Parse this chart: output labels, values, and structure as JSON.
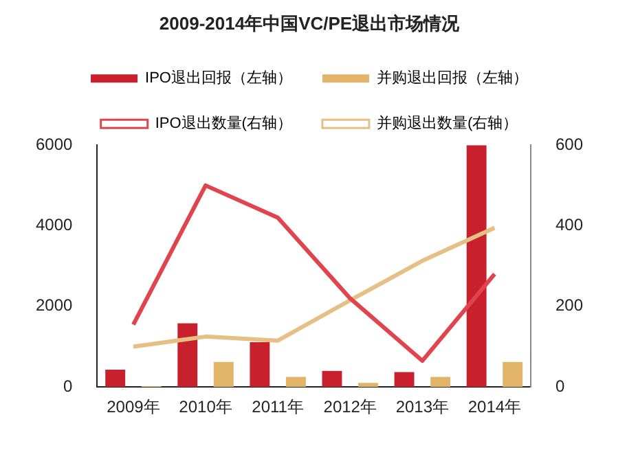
{
  "chart_data": {
    "type": "bar",
    "title": "2009-2014年中国VC/PE退出市场情况",
    "categories": [
      "2009年",
      "2010年",
      "2011年",
      "2012年",
      "2013年",
      "2014年"
    ],
    "series": [
      {
        "name": "IPO退出回报（左轴）",
        "color": "#c8202c",
        "values": [
          430,
          1580,
          1110,
          400,
          370,
          6000
        ]
      },
      {
        "name": "并购退出回报（左轴）",
        "color": "#e2b46a",
        "values": [
          20,
          620,
          250,
          100,
          250,
          620
        ]
      },
      {
        "name": "IPO退出数量(右轴）",
        "type": "line",
        "axis": "y2",
        "color": "#e0454e",
        "values": [
          155,
          500,
          420,
          220,
          65,
          280
        ]
      },
      {
        "name": "并购退出数量(右轴）",
        "type": "line",
        "axis": "y2",
        "color": "#e6bf85",
        "values": [
          100,
          125,
          115,
          215,
          313,
          395
        ]
      }
    ],
    "ylim": [
      0,
      6000
    ],
    "yticks": [
      0,
      2000,
      4000,
      6000
    ],
    "y2lim": [
      0,
      600
    ],
    "y2ticks": [
      0,
      200,
      400,
      600
    ],
    "grid": false,
    "legend": "top",
    "marker": "none"
  }
}
